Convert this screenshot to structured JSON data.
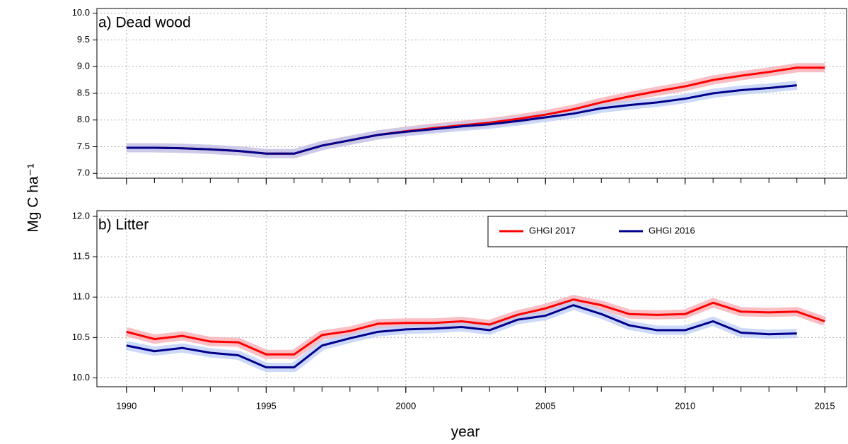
{
  "chart_data": [
    {
      "type": "line",
      "title": "a) Dead wood",
      "ylabel": "Mg C ha⁻¹",
      "x": [
        1990,
        1991,
        1992,
        1993,
        1994,
        1995,
        1996,
        1997,
        1998,
        1999,
        2000,
        2001,
        2002,
        2003,
        2004,
        2005,
        2006,
        2007,
        2008,
        2009,
        2010,
        2011,
        2012,
        2013,
        2014,
        2015
      ],
      "series": [
        {
          "name": "GHGI 2017",
          "color": "#ff0000",
          "values": [
            7.48,
            7.48,
            7.47,
            7.45,
            7.42,
            7.37,
            7.37,
            7.52,
            7.62,
            7.72,
            7.79,
            7.85,
            7.9,
            7.95,
            8.02,
            8.1,
            8.2,
            8.33,
            8.44,
            8.54,
            8.63,
            8.75,
            8.83,
            8.9,
            8.98,
            8.98
          ]
        },
        {
          "name": "GHGI 2016",
          "color": "#00008b",
          "values": [
            7.48,
            7.48,
            7.47,
            7.45,
            7.42,
            7.37,
            7.37,
            7.52,
            7.62,
            7.72,
            7.78,
            7.83,
            7.88,
            7.92,
            7.98,
            8.05,
            8.12,
            8.22,
            8.28,
            8.33,
            8.4,
            8.5,
            8.56,
            8.6,
            8.65,
            null
          ]
        }
      ],
      "xlim": [
        1988.94,
        2015.78
      ],
      "xticks": [
        1990,
        1995,
        2000,
        2005,
        2010,
        2015
      ],
      "ylim": [
        6.91,
        10.09
      ],
      "yticks": [
        {
          "value": 7,
          "label": "7.0"
        },
        7.5,
        {
          "value": 8,
          "label": "8.0"
        },
        8.5,
        {
          "value": 9,
          "label": "9.0"
        },
        9.5,
        {
          "value": 10,
          "label": "10.0"
        }
      ],
      "grid": true
    },
    {
      "type": "line",
      "title": "b) Litter",
      "xlabel": "year",
      "legend": "top-right",
      "x": [
        1990,
        1991,
        1992,
        1993,
        1994,
        1995,
        1996,
        1997,
        1998,
        1999,
        2000,
        2001,
        2002,
        2003,
        2004,
        2005,
        2006,
        2007,
        2008,
        2009,
        2010,
        2011,
        2012,
        2013,
        2014,
        2015
      ],
      "series": [
        {
          "name": "GHGI 2017",
          "color": "#ff0000",
          "values": [
            10.57,
            10.48,
            10.52,
            10.45,
            10.44,
            10.29,
            10.29,
            10.53,
            10.58,
            10.67,
            10.68,
            10.68,
            10.7,
            10.66,
            10.78,
            10.86,
            10.97,
            10.9,
            10.79,
            10.78,
            10.79,
            10.93,
            10.82,
            10.81,
            10.82,
            10.7
          ]
        },
        {
          "name": "GHGI 2016",
          "color": "#00008b",
          "values": [
            10.4,
            10.33,
            10.37,
            10.31,
            10.28,
            10.13,
            10.13,
            10.4,
            10.49,
            10.57,
            10.6,
            10.61,
            10.63,
            10.59,
            10.72,
            10.77,
            10.9,
            10.79,
            10.65,
            10.59,
            10.59,
            10.7,
            10.56,
            10.54,
            10.55,
            null
          ]
        }
      ],
      "xlim": [
        1988.94,
        2015.78
      ],
      "xticks": [
        1990,
        1995,
        2000,
        2005,
        2010,
        2015
      ],
      "ylim": [
        9.89,
        12.07
      ],
      "yticks": [
        {
          "value": 10,
          "label": "10.0"
        },
        10.5,
        {
          "value": 11,
          "label": "11.0"
        },
        11.5,
        {
          "value": 12,
          "label": "12.0"
        }
      ],
      "grid": true
    }
  ]
}
